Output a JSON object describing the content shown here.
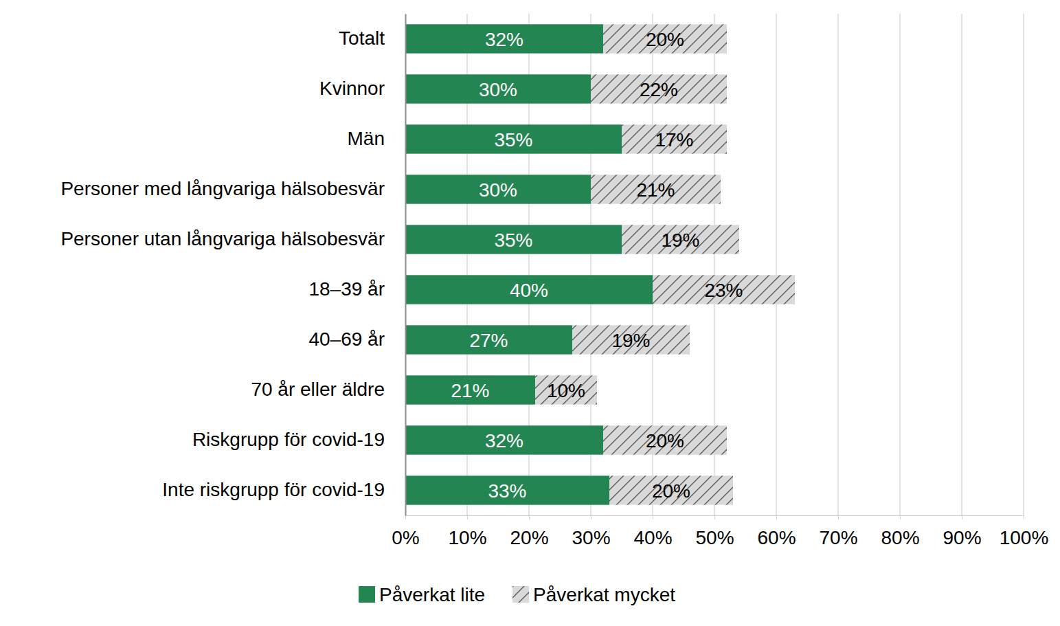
{
  "chart_data": {
    "type": "bar",
    "orientation": "horizontal",
    "stacked": true,
    "data_labels": true,
    "grid": true,
    "legend": "bottom",
    "categories": [
      "Totalt",
      "Kvinnor",
      "Män",
      "Personer med långvariga hälsobesvär",
      "Personer utan långvariga hälsobesvär",
      "18–39 år",
      "40–69 år",
      "70 år eller äldre",
      "Riskgrupp för covid-19",
      "Inte riskgrupp för covid-19"
    ],
    "series": [
      {
        "name": "Påverkat lite",
        "color": "#238551",
        "values": [
          32,
          30,
          35,
          30,
          35,
          40,
          27,
          21,
          32,
          33
        ],
        "value_labels": [
          "32%",
          "30%",
          "35%",
          "30%",
          "35%",
          "40%",
          "27%",
          "21%",
          "32%",
          "33%"
        ]
      },
      {
        "name": "Påverkat mycket",
        "color": "#d9d9d9",
        "values": [
          20,
          22,
          17,
          21,
          19,
          23,
          19,
          10,
          20,
          20
        ],
        "value_labels": [
          "20%",
          "22%",
          "17%",
          "21%",
          "19%",
          "23%",
          "19%",
          "10%",
          "20%",
          "20%"
        ]
      }
    ],
    "xlim": [
      0,
      100
    ],
    "xticks": [
      {
        "value": 0,
        "label": "0%"
      },
      {
        "value": 10,
        "label": "10%"
      },
      {
        "value": 20,
        "label": "20%"
      },
      {
        "value": 30,
        "label": "30%"
      },
      {
        "value": 40,
        "label": "40%"
      },
      {
        "value": 50,
        "label": "50%"
      },
      {
        "value": 60,
        "label": "60%"
      },
      {
        "value": 70,
        "label": "70%"
      },
      {
        "value": 80,
        "label": "80%"
      },
      {
        "value": 90,
        "label": "90%"
      },
      {
        "value": 100,
        "label": "100%"
      }
    ]
  }
}
